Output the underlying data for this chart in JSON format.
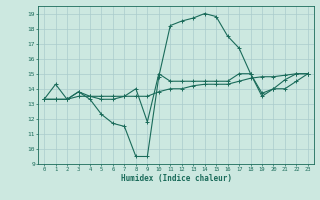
{
  "xlabel": "Humidex (Indice chaleur)",
  "bg_color": "#cce8e0",
  "grid_color": "#aacccc",
  "line_color": "#1a6b5a",
  "xlim": [
    -0.5,
    23.5
  ],
  "ylim": [
    9,
    19.5
  ],
  "xticks": [
    0,
    1,
    2,
    3,
    4,
    5,
    6,
    7,
    8,
    9,
    10,
    11,
    12,
    13,
    14,
    15,
    16,
    17,
    18,
    19,
    20,
    21,
    22,
    23
  ],
  "yticks": [
    9,
    10,
    11,
    12,
    13,
    14,
    15,
    16,
    17,
    18,
    19
  ],
  "line1_x": [
    0,
    1,
    2,
    3,
    4,
    5,
    6,
    7,
    8,
    9,
    10,
    11,
    12,
    13,
    14,
    15,
    16,
    17,
    18,
    19,
    20,
    21,
    22,
    23
  ],
  "line1_y": [
    13.3,
    14.3,
    13.3,
    13.8,
    13.3,
    12.3,
    11.7,
    11.5,
    9.5,
    9.5,
    14.8,
    18.2,
    18.5,
    18.7,
    19.0,
    18.8,
    17.5,
    16.7,
    15.0,
    13.7,
    14.0,
    14.6,
    15.0,
    15.0
  ],
  "line2_x": [
    0,
    1,
    2,
    3,
    4,
    5,
    6,
    7,
    8,
    9,
    10,
    11,
    12,
    13,
    14,
    15,
    16,
    17,
    18,
    19,
    20,
    21,
    22,
    23
  ],
  "line2_y": [
    13.3,
    13.3,
    13.3,
    13.5,
    13.5,
    13.5,
    13.5,
    13.5,
    13.5,
    13.5,
    13.8,
    14.0,
    14.0,
    14.2,
    14.3,
    14.3,
    14.3,
    14.5,
    14.7,
    14.8,
    14.8,
    14.9,
    15.0,
    15.0
  ],
  "line3_x": [
    0,
    1,
    2,
    3,
    4,
    5,
    6,
    7,
    8,
    9,
    10,
    11,
    12,
    13,
    14,
    15,
    16,
    17,
    18,
    19,
    20,
    21,
    22,
    23
  ],
  "line3_y": [
    13.3,
    13.3,
    13.3,
    13.8,
    13.5,
    13.3,
    13.3,
    13.5,
    14.0,
    11.8,
    15.0,
    14.5,
    14.5,
    14.5,
    14.5,
    14.5,
    14.5,
    15.0,
    15.0,
    13.5,
    14.0,
    14.0,
    14.5,
    15.0
  ]
}
